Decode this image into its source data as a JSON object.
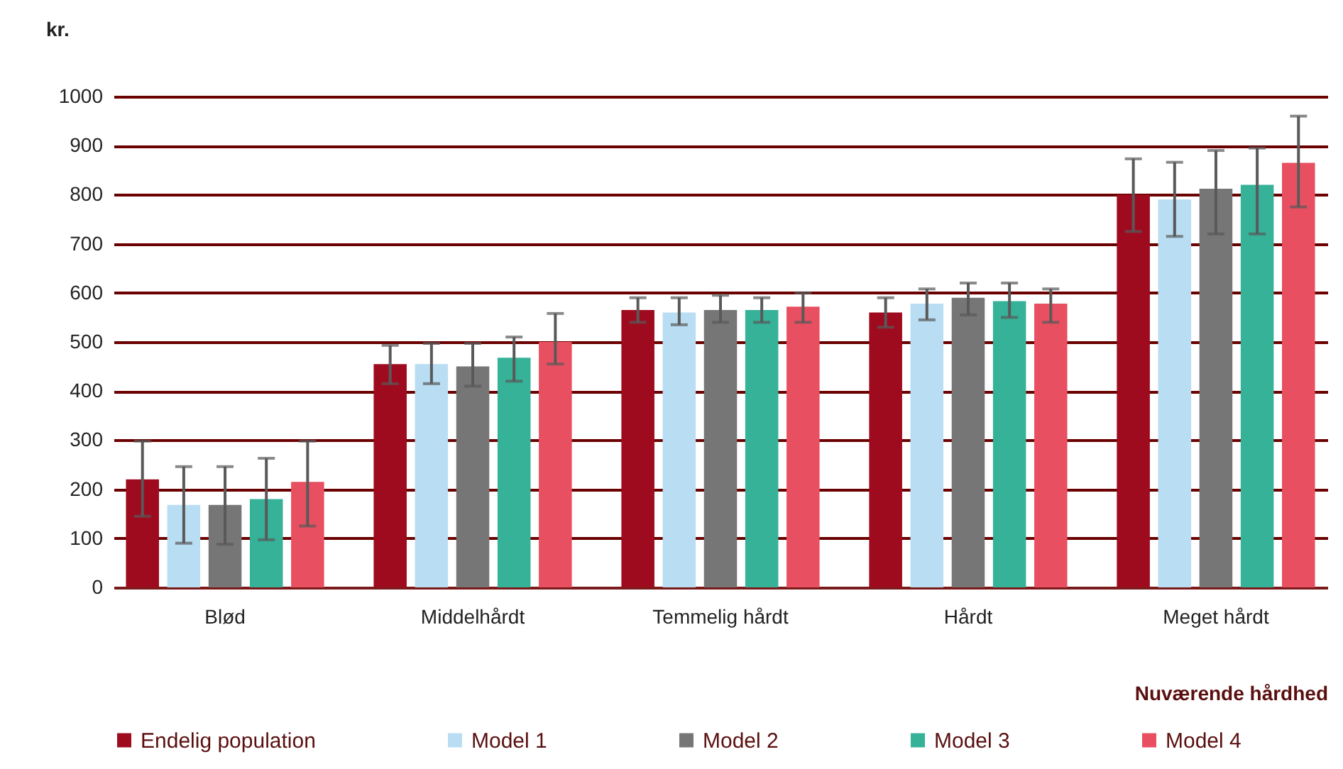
{
  "chart_data": {
    "type": "bar",
    "xlabel": "Nuværende hårdhed",
    "ylabel": "kr.",
    "categories": [
      "Blød",
      "Middelhårdt",
      "Temmelig hårdt",
      "Hårdt",
      "Meget hårdt"
    ],
    "series": [
      {
        "name": "Endelig population",
        "color": "#9e0b1f",
        "values": [
          220,
          455,
          565,
          560,
          800
        ],
        "errors": [
          [
            145,
            298
          ],
          [
            415,
            493
          ],
          [
            540,
            590
          ],
          [
            530,
            590
          ],
          [
            725,
            873
          ]
        ]
      },
      {
        "name": "Model 1",
        "color": "#b9ddf3",
        "values": [
          168,
          455,
          560,
          578,
          790
        ],
        "errors": [
          [
            90,
            246
          ],
          [
            415,
            497
          ],
          [
            535,
            590
          ],
          [
            545,
            608
          ],
          [
            715,
            866
          ]
        ]
      },
      {
        "name": "Model 2",
        "color": "#767676",
        "values": [
          168,
          450,
          565,
          590,
          812
        ],
        "errors": [
          [
            88,
            246
          ],
          [
            410,
            497
          ],
          [
            540,
            595
          ],
          [
            555,
            620
          ],
          [
            720,
            890
          ]
        ]
      },
      {
        "name": "Model 3",
        "color": "#36b298",
        "values": [
          180,
          468,
          565,
          583,
          820
        ],
        "errors": [
          [
            97,
            263
          ],
          [
            420,
            510
          ],
          [
            540,
            590
          ],
          [
            550,
            620
          ],
          [
            720,
            895
          ]
        ]
      },
      {
        "name": "Model 4",
        "color": "#e85062",
        "values": [
          215,
          500,
          572,
          578,
          865
        ],
        "errors": [
          [
            125,
            298
          ],
          [
            455,
            558
          ],
          [
            540,
            600
          ],
          [
            540,
            608
          ],
          [
            775,
            960
          ]
        ]
      }
    ],
    "ylim": [
      0,
      1000
    ],
    "yticks": [
      0,
      100,
      200,
      300,
      400,
      500,
      600,
      700,
      800,
      900,
      1000
    ],
    "grid": "y",
    "legend": "bottom"
  }
}
